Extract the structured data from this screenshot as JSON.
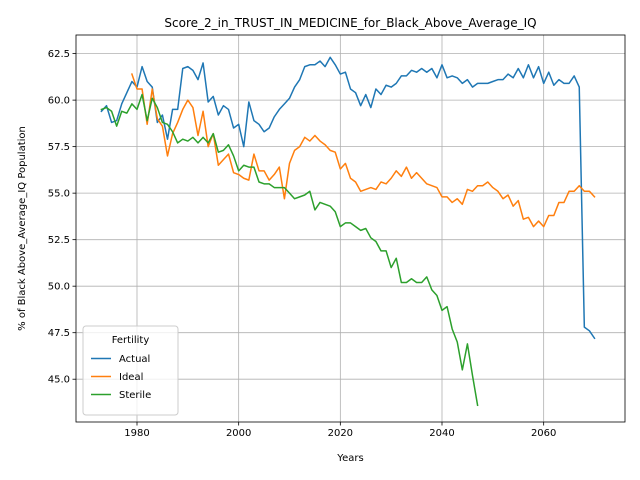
{
  "chart_data": {
    "type": "line",
    "title": "Score_2_in_TRUST_IN_MEDICINE_for_Black_Above_Average_IQ",
    "xlabel": "Years",
    "ylabel": "% of Black Above_Average_IQ Population",
    "xlim": [
      1968,
      2076
    ],
    "ylim": [
      42.7,
      63.5
    ],
    "xticks": [
      1980,
      2000,
      2020,
      2040,
      2060
    ],
    "xtick_labels": [
      "1980",
      "2000",
      "2020",
      "2040",
      "2060"
    ],
    "yticks": [
      45.0,
      47.5,
      50.0,
      52.5,
      55.0,
      57.5,
      60.0,
      62.5
    ],
    "ytick_labels": [
      "45.0",
      "47.5",
      "50.0",
      "52.5",
      "55.0",
      "57.5",
      "60.0",
      "62.5"
    ],
    "grid": true,
    "legend": {
      "title": "Fertility",
      "position": "lower-left"
    },
    "series": [
      {
        "name": "Actual",
        "color": "#1f77b4",
        "x": [
          1973,
          1974,
          1975,
          1976,
          1977,
          1978,
          1979,
          1980,
          1981,
          1982,
          1983,
          1984,
          1985,
          1986,
          1987,
          1988,
          1989,
          1990,
          1991,
          1992,
          1993,
          1994,
          1995,
          1996,
          1997,
          1998,
          1999,
          2000,
          2001,
          2002,
          2003,
          2004,
          2005,
          2006,
          2007,
          2008,
          2009,
          2010,
          2011,
          2012,
          2013,
          2014,
          2015,
          2016,
          2017,
          2018,
          2019,
          2020,
          2021,
          2022,
          2023,
          2024,
          2025,
          2026,
          2027,
          2028,
          2029,
          2030,
          2031,
          2032,
          2033,
          2034,
          2035,
          2036,
          2037,
          2038,
          2039,
          2040,
          2041,
          2042,
          2043,
          2044,
          2045,
          2046,
          2047,
          2048,
          2049,
          2050,
          2051,
          2052,
          2053,
          2054,
          2055,
          2056,
          2057,
          2058,
          2059,
          2060,
          2061,
          2062,
          2063,
          2064,
          2065,
          2066,
          2067,
          2068,
          2069,
          2070
        ],
        "values": [
          59.4,
          59.7,
          58.8,
          58.9,
          59.8,
          60.4,
          61.0,
          60.7,
          61.8,
          61.0,
          60.7,
          58.8,
          59.2,
          57.9,
          59.5,
          59.5,
          61.7,
          61.8,
          61.6,
          61.1,
          62.0,
          59.9,
          60.2,
          59.2,
          59.7,
          59.5,
          58.5,
          58.7,
          57.5,
          59.9,
          58.9,
          58.7,
          58.3,
          58.5,
          59.1,
          59.5,
          59.8,
          60.1,
          60.7,
          61.1,
          61.8,
          61.9,
          61.9,
          62.1,
          61.8,
          62.3,
          61.9,
          61.4,
          61.5,
          60.6,
          60.4,
          59.7,
          60.3,
          59.6,
          60.6,
          60.3,
          60.8,
          60.7,
          60.9,
          61.3,
          61.3,
          61.6,
          61.5,
          61.7,
          61.5,
          61.7,
          61.2,
          61.9,
          61.2,
          61.3,
          61.2,
          60.9,
          61.1,
          60.7,
          60.9,
          60.9,
          60.9,
          61.0,
          61.1,
          61.1,
          61.4,
          61.2,
          61.7,
          61.2,
          61.9,
          61.2,
          61.8,
          60.9,
          61.5,
          60.8,
          61.1,
          60.9,
          60.9,
          61.3,
          60.7,
          47.8,
          47.6,
          47.2
        ]
      },
      {
        "name": "Ideal",
        "color": "#ff7f0e",
        "x": [
          1979,
          1980,
          1981,
          1982,
          1983,
          1984,
          1985,
          1986,
          1987,
          1988,
          1989,
          1990,
          1991,
          1992,
          1993,
          1994,
          1995,
          1996,
          1997,
          1998,
          1999,
          2000,
          2001,
          2002,
          2003,
          2004,
          2005,
          2006,
          2007,
          2008,
          2009,
          2010,
          2011,
          2012,
          2013,
          2014,
          2015,
          2016,
          2017,
          2018,
          2019,
          2020,
          2021,
          2022,
          2023,
          2024,
          2025,
          2026,
          2027,
          2028,
          2029,
          2030,
          2031,
          2032,
          2033,
          2034,
          2035,
          2036,
          2037,
          2038,
          2039,
          2040,
          2041,
          2042,
          2043,
          2044,
          2045,
          2046,
          2047,
          2048,
          2049,
          2050,
          2051,
          2052,
          2053,
          2054,
          2055,
          2056,
          2057,
          2058,
          2059,
          2060,
          2061,
          2062,
          2063,
          2064,
          2065,
          2066,
          2067,
          2068,
          2069,
          2070
        ],
        "values": [
          61.4,
          60.6,
          60.6,
          58.7,
          60.6,
          59.0,
          58.6,
          57.0,
          58.2,
          58.8,
          59.5,
          60.0,
          59.6,
          58.1,
          59.4,
          57.5,
          58.2,
          56.5,
          56.8,
          57.1,
          56.1,
          56.0,
          55.8,
          55.7,
          57.1,
          56.2,
          56.2,
          55.7,
          56.0,
          56.4,
          54.7,
          56.6,
          57.3,
          57.5,
          58.0,
          57.8,
          58.1,
          57.8,
          57.6,
          57.3,
          57.2,
          56.3,
          56.6,
          55.8,
          55.6,
          55.1,
          55.2,
          55.3,
          55.2,
          55.6,
          55.5,
          55.8,
          56.2,
          55.9,
          56.4,
          55.8,
          56.1,
          55.8,
          55.5,
          55.4,
          55.3,
          54.8,
          54.8,
          54.5,
          54.7,
          54.4,
          55.2,
          55.1,
          55.4,
          55.4,
          55.6,
          55.3,
          55.1,
          54.7,
          54.9,
          54.3,
          54.6,
          53.6,
          53.7,
          53.2,
          53.5,
          53.2,
          53.8,
          53.8,
          54.5,
          54.5,
          55.1,
          55.1,
          55.4,
          55.1,
          55.1,
          54.8
        ]
      },
      {
        "name": "Sterile",
        "color": "#2ca02c",
        "x": [
          1973,
          1974,
          1975,
          1976,
          1977,
          1978,
          1979,
          1980,
          1981,
          1982,
          1983,
          1984,
          1985,
          1986,
          1987,
          1988,
          1989,
          1990,
          1991,
          1992,
          1993,
          1994,
          1995,
          1996,
          1997,
          1998,
          1999,
          2000,
          2001,
          2002,
          2003,
          2004,
          2005,
          2006,
          2007,
          2008,
          2009,
          2010,
          2011,
          2012,
          2013,
          2014,
          2015,
          2016,
          2017,
          2018,
          2019,
          2020,
          2021,
          2022,
          2023,
          2024,
          2025,
          2026,
          2027,
          2028,
          2029,
          2030,
          2031,
          2032,
          2033,
          2034,
          2035,
          2036,
          2037,
          2038,
          2039,
          2040,
          2041,
          2042,
          2043,
          2044,
          2045,
          2046,
          2047
        ],
        "values": [
          59.5,
          59.6,
          59.4,
          58.6,
          59.4,
          59.3,
          59.8,
          59.5,
          60.3,
          58.9,
          60.1,
          59.6,
          58.8,
          58.7,
          58.3,
          57.7,
          57.9,
          57.8,
          58.0,
          57.7,
          58.0,
          57.7,
          58.2,
          57.2,
          57.3,
          57.6,
          57.0,
          56.2,
          56.5,
          56.4,
          56.4,
          55.6,
          55.5,
          55.5,
          55.3,
          55.3,
          55.3,
          55.0,
          54.7,
          54.8,
          54.9,
          55.1,
          54.1,
          54.5,
          54.4,
          54.3,
          54.0,
          53.2,
          53.4,
          53.4,
          53.2,
          53.0,
          53.1,
          52.6,
          52.4,
          51.9,
          51.9,
          51.0,
          51.5,
          50.2,
          50.2,
          50.4,
          50.2,
          50.2,
          50.5,
          49.8,
          49.5,
          48.7,
          48.9,
          47.7,
          47.0,
          45.5,
          46.9,
          45.2,
          43.6
        ]
      }
    ]
  }
}
